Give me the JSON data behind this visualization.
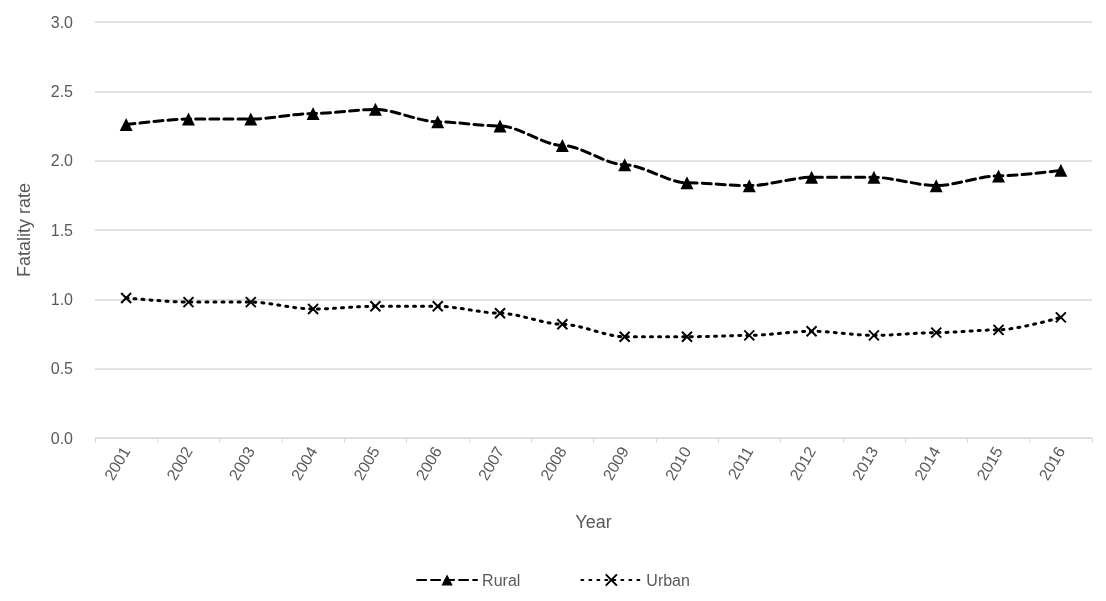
{
  "chart_data": {
    "type": "line",
    "xlabel": "Year",
    "ylabel": "Fatality rate",
    "categories": [
      "2001",
      "2002",
      "2003",
      "2004",
      "2005",
      "2006",
      "2007",
      "2008",
      "2009",
      "2010",
      "2011",
      "2012",
      "2013",
      "2014",
      "2015",
      "2016"
    ],
    "series": [
      {
        "name": "Rural",
        "color": "#000000",
        "marker": "triangle",
        "line_style": "dashed",
        "values": [
          2.26,
          2.3,
          2.3,
          2.34,
          2.37,
          2.28,
          2.25,
          2.11,
          1.97,
          1.84,
          1.82,
          1.88,
          1.88,
          1.82,
          1.89,
          1.93
        ]
      },
      {
        "name": "Urban",
        "color": "#000000",
        "marker": "cross",
        "line_style": "dotted",
        "values": [
          1.01,
          0.98,
          0.98,
          0.93,
          0.95,
          0.95,
          0.9,
          0.82,
          0.73,
          0.73,
          0.74,
          0.77,
          0.74,
          0.76,
          0.78,
          0.87
        ]
      }
    ],
    "ylim": [
      0,
      3
    ],
    "yticks": [
      {
        "value": 0,
        "label": "0.0"
      },
      0.5,
      {
        "value": 1,
        "label": "1.0"
      },
      1.5,
      {
        "value": 2,
        "label": "2.0"
      },
      2.5,
      {
        "value": 3,
        "label": "3.0"
      }
    ],
    "grid": "y",
    "legend": "bottom"
  }
}
